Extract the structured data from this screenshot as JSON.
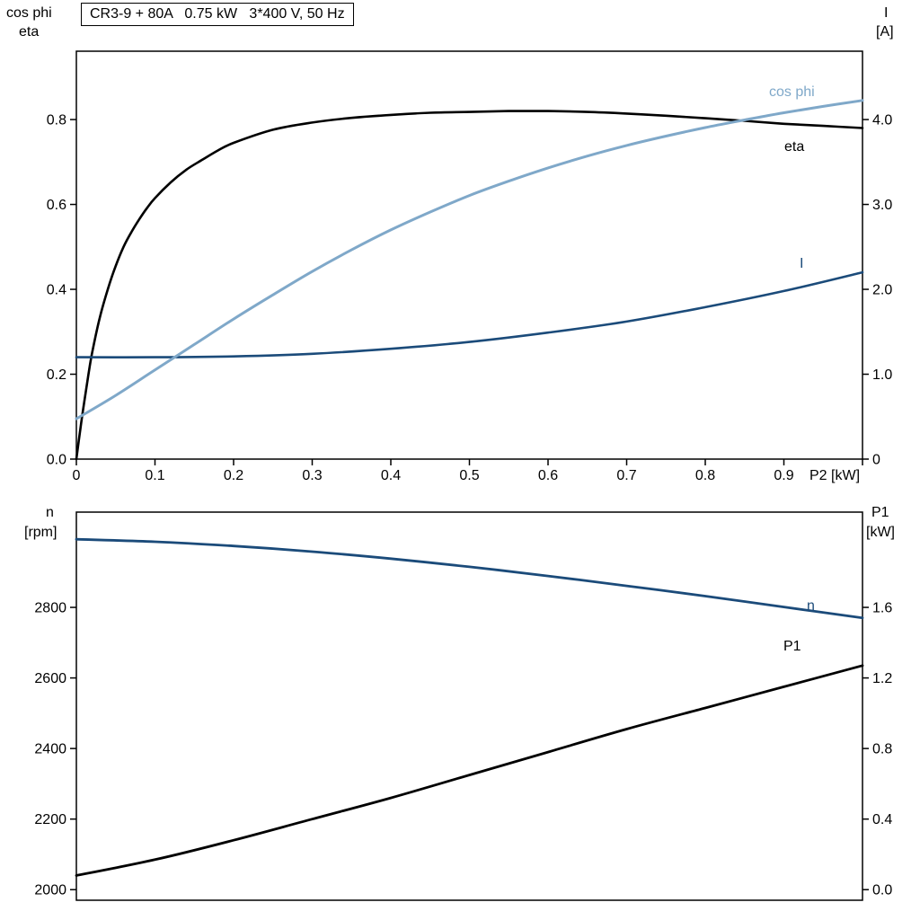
{
  "title_box": "CR3-9 + 80A   0.75 kW   3*400 V, 50 Hz",
  "colors": {
    "frame": "#000000",
    "eta": "#000000",
    "cos_phi": "#7fa8c9",
    "current": "#1b4b7a",
    "speed": "#1b4b7a",
    "p1": "#000000"
  },
  "top_chart": {
    "left_axis_title_1": "cos phi",
    "left_axis_title_2": "eta",
    "right_axis_title_1": "I",
    "right_axis_title_2": "[A]",
    "x_axis_title": "P2 [kW]",
    "curve_labels": {
      "cos_phi": "cos phi",
      "eta": "eta",
      "current": "I"
    }
  },
  "bottom_chart": {
    "left_axis_title_1": "n",
    "left_axis_title_2": "[rpm]",
    "right_axis_title_1": "P1",
    "right_axis_title_2": "[kW]",
    "curve_labels": {
      "speed": "n",
      "p1": "P1"
    }
  },
  "chart_data": [
    {
      "type": "line",
      "title": "CR3-9 + 80A   0.75 kW   3*400 V, 50 Hz",
      "xlabel": "P2 [kW]",
      "x_range": [
        0,
        1.0
      ],
      "x_ticks": [
        {
          "v": 0,
          "label": "0"
        },
        {
          "v": 0.1,
          "label": "0.1"
        },
        {
          "v": 0.2,
          "label": "0.2"
        },
        {
          "v": 0.3,
          "label": "0.3"
        },
        {
          "v": 0.4,
          "label": "0.4"
        },
        {
          "v": 0.5,
          "label": "0.5"
        },
        {
          "v": 0.6,
          "label": "0.6"
        },
        {
          "v": 0.7,
          "label": "0.7"
        },
        {
          "v": 0.8,
          "label": "0.8"
        },
        {
          "v": 0.9,
          "label": "0.9"
        },
        {
          "v": 1.0,
          "label": ""
        }
      ],
      "y_left": {
        "title": "cos phi / eta",
        "range": [
          0,
          0.961
        ],
        "ticks": [
          {
            "v": 0,
            "label": "0.0"
          },
          {
            "v": 0.2,
            "label": "0.2"
          },
          {
            "v": 0.4,
            "label": "0.4"
          },
          {
            "v": 0.6,
            "label": "0.6"
          },
          {
            "v": 0.8,
            "label": "0.8"
          }
        ]
      },
      "y_right": {
        "title": "I [A]",
        "range": [
          0,
          4.805
        ],
        "ticks": [
          {
            "v": 0,
            "label": "0"
          },
          {
            "v": 1,
            "label": "1.0"
          },
          {
            "v": 2,
            "label": "2.0"
          },
          {
            "v": 3,
            "label": "3.0"
          },
          {
            "v": 4,
            "label": "4.0"
          }
        ]
      },
      "series": [
        {
          "name": "eta",
          "axis": "left",
          "color": "#000000",
          "width": 2.6,
          "x": [
            0,
            0.005,
            0.01,
            0.015,
            0.02,
            0.03,
            0.04,
            0.05,
            0.06,
            0.07,
            0.08,
            0.09,
            0.1,
            0.12,
            0.14,
            0.16,
            0.18,
            0.2,
            0.25,
            0.3,
            0.35,
            0.4,
            0.45,
            0.5,
            0.55,
            0.6,
            0.65,
            0.7,
            0.75,
            0.8,
            0.85,
            0.9,
            0.95,
            1.0
          ],
          "y": [
            0,
            0.07,
            0.135,
            0.195,
            0.25,
            0.335,
            0.4,
            0.455,
            0.5,
            0.535,
            0.565,
            0.592,
            0.615,
            0.652,
            0.682,
            0.705,
            0.727,
            0.745,
            0.776,
            0.793,
            0.804,
            0.811,
            0.816,
            0.818,
            0.82,
            0.82,
            0.818,
            0.814,
            0.809,
            0.803,
            0.797,
            0.79,
            0.785,
            0.78
          ]
        },
        {
          "name": "I",
          "axis": "right",
          "color": "#1b4b7a",
          "width": 2.6,
          "x": [
            0,
            0.1,
            0.2,
            0.3,
            0.4,
            0.5,
            0.6,
            0.7,
            0.8,
            0.9,
            1.0
          ],
          "y": [
            1.2,
            1.2,
            1.21,
            1.24,
            1.3,
            1.38,
            1.49,
            1.62,
            1.79,
            1.98,
            2.2
          ]
        },
        {
          "name": "cos phi",
          "axis": "left",
          "color": "#7fa8c9",
          "width": 3,
          "x": [
            0,
            0.05,
            0.1,
            0.15,
            0.2,
            0.25,
            0.3,
            0.35,
            0.4,
            0.45,
            0.5,
            0.55,
            0.6,
            0.65,
            0.7,
            0.75,
            0.8,
            0.85,
            0.9,
            0.95,
            1.0
          ],
          "y": [
            0.095,
            0.15,
            0.21,
            0.27,
            0.33,
            0.387,
            0.442,
            0.493,
            0.54,
            0.582,
            0.621,
            0.655,
            0.686,
            0.714,
            0.739,
            0.761,
            0.781,
            0.799,
            0.816,
            0.831,
            0.845
          ]
        }
      ]
    },
    {
      "type": "line",
      "title": "",
      "xlabel": "",
      "x_range": [
        0,
        1.0
      ],
      "x_ticks": [],
      "y_left": {
        "title": "n [rpm]",
        "range": [
          1970,
          3070
        ],
        "ticks": [
          {
            "v": 2000,
            "label": "2000"
          },
          {
            "v": 2200,
            "label": "2200"
          },
          {
            "v": 2400,
            "label": "2400"
          },
          {
            "v": 2600,
            "label": "2600"
          },
          {
            "v": 2800,
            "label": "2800"
          }
        ]
      },
      "y_right": {
        "title": "P1 [kW]",
        "range": [
          -0.06,
          2.14
        ],
        "ticks": [
          {
            "v": 0,
            "label": "0.0"
          },
          {
            "v": 0.4,
            "label": "0.4"
          },
          {
            "v": 0.8,
            "label": "0.8"
          },
          {
            "v": 1.2,
            "label": "1.2"
          },
          {
            "v": 1.6,
            "label": "1.6"
          }
        ]
      },
      "series": [
        {
          "name": "P1",
          "axis": "right",
          "color": "#000000",
          "width": 2.8,
          "x": [
            0,
            0.1,
            0.2,
            0.3,
            0.4,
            0.5,
            0.6,
            0.7,
            0.8,
            0.9,
            1.0
          ],
          "y": [
            0.08,
            0.17,
            0.28,
            0.4,
            0.52,
            0.65,
            0.78,
            0.91,
            1.03,
            1.15,
            1.27
          ]
        },
        {
          "name": "n",
          "axis": "left",
          "color": "#1b4b7a",
          "width": 2.8,
          "x": [
            0,
            0.1,
            0.2,
            0.3,
            0.4,
            0.5,
            0.6,
            0.7,
            0.8,
            0.9,
            1.0
          ],
          "y": [
            2993,
            2986,
            2974,
            2958,
            2938,
            2915,
            2889,
            2861,
            2832,
            2801,
            2770
          ]
        }
      ]
    }
  ]
}
